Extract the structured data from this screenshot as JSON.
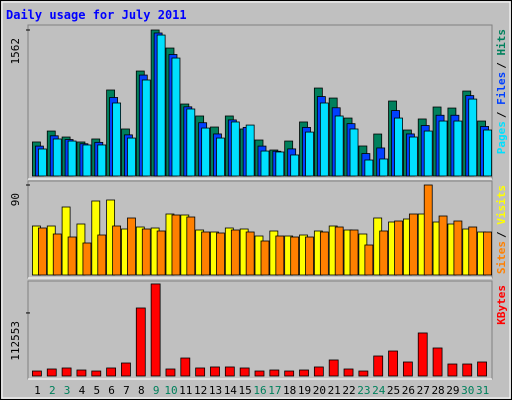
{
  "chart_data": [
    {
      "type": "bar",
      "title": "Daily usage for July 2011",
      "series": [
        {
          "name": "Hits",
          "color": "#00805c",
          "values": [
            364,
            481,
            417,
            364,
            396,
            920,
            503,
            1123,
            1562,
            1369,
            770,
            642,
            524,
            642,
            503,
            385,
            278,
            374,
            578,
            941,
            834,
            620,
            321,
            449,
            802,
            492,
            610,
            738,
            727,
            909,
            588
          ]
        },
        {
          "name": "Files",
          "color": "#0040ff",
          "values": [
            320,
            430,
            390,
            345,
            360,
            840,
            440,
            1080,
            1530,
            1300,
            740,
            570,
            450,
            600,
            520,
            320,
            265,
            290,
            520,
            850,
            730,
            560,
            240,
            300,
            700,
            450,
            540,
            650,
            650,
            860,
            530
          ]
        },
        {
          "name": "Pages",
          "color": "#00e0ff",
          "values": [
            289,
            396,
            374,
            332,
            332,
            781,
            406,
            1027,
            1508,
            1262,
            717,
            513,
            406,
            578,
            545,
            267,
            257,
            225,
            470,
            781,
            642,
            503,
            171,
            182,
            620,
            417,
            481,
            588,
            588,
            823,
            492
          ]
        }
      ],
      "legend_separator": "/",
      "ylim": [
        0,
        1562
      ],
      "yticks": [
        1562
      ]
    },
    {
      "type": "bar",
      "series": [
        {
          "name": "Visits",
          "color": "#ffff00",
          "values": [
            49,
            49,
            68,
            51,
            74,
            75,
            46,
            48,
            47,
            61,
            60,
            45,
            43,
            47,
            46,
            39,
            44,
            39,
            40,
            44,
            49,
            45,
            41,
            57,
            53,
            56,
            61,
            53,
            51,
            46,
            43
          ]
        },
        {
          "name": "Sites",
          "color": "#ff8000",
          "values": [
            47,
            41,
            38,
            32,
            40,
            49,
            57,
            46,
            44,
            60,
            58,
            43,
            42,
            45,
            43,
            34,
            39,
            38,
            38,
            43,
            48,
            45,
            30,
            44,
            54,
            61,
            90,
            59,
            54,
            48,
            43
          ]
        }
      ],
      "legend_separator": "/",
      "ylim": [
        0,
        90
      ],
      "yticks": [
        90
      ]
    },
    {
      "type": "bar",
      "series": [
        {
          "name": "KBytes",
          "color": "#ff0000",
          "values": [
            8900,
            12500,
            14300,
            10700,
            8900,
            14300,
            23200,
            121400,
            164300,
            12500,
            32100,
            14300,
            16100,
            16100,
            14300,
            8900,
            10700,
            8900,
            10700,
            16100,
            28600,
            12500,
            8900,
            35700,
            44600,
            25000,
            76800,
            50000,
            21400,
            21400,
            25000
          ]
        }
      ],
      "ylim": [
        0,
        166000
      ],
      "yticks": [
        112553
      ],
      "categories": [
        "1",
        "2",
        "3",
        "4",
        "5",
        "6",
        "7",
        "8",
        "9",
        "10",
        "11",
        "12",
        "13",
        "14",
        "15",
        "16",
        "17",
        "18",
        "19",
        "20",
        "21",
        "22",
        "23",
        "24",
        "25",
        "26",
        "27",
        "28",
        "29",
        "30",
        "31"
      ],
      "category_colors": [
        "#000000",
        "#00805c",
        "#00805c",
        "#000000",
        "#000000",
        "#000000",
        "#000000",
        "#000000",
        "#00805c",
        "#00805c",
        "#000000",
        "#000000",
        "#000000",
        "#000000",
        "#000000",
        "#00805c",
        "#00805c",
        "#000000",
        "#000000",
        "#000000",
        "#000000",
        "#000000",
        "#00805c",
        "#00805c",
        "#000000",
        "#000000",
        "#000000",
        "#000000",
        "#000000",
        "#00805c",
        "#00805c"
      ]
    }
  ]
}
